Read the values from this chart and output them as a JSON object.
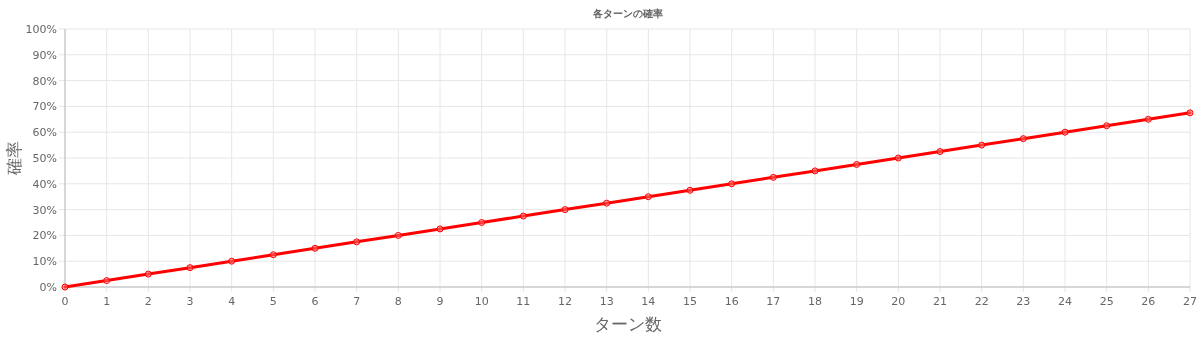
{
  "chart_data": {
    "type": "line",
    "title": "各ターンの確率",
    "xlabel": "ターン数",
    "ylabel": "確率",
    "x": [
      0,
      1,
      2,
      3,
      4,
      5,
      6,
      7,
      8,
      9,
      10,
      11,
      12,
      13,
      14,
      15,
      16,
      17,
      18,
      19,
      20,
      21,
      22,
      23,
      24,
      25,
      26,
      27
    ],
    "series": [
      {
        "color": "#ff0000",
        "values": [
          0,
          2.5,
          5,
          7.5,
          10,
          12.5,
          15,
          17.5,
          20,
          22.5,
          25,
          27.5,
          30,
          32.5,
          35,
          37.5,
          40,
          42.5,
          45,
          47.5,
          50,
          52.5,
          55,
          57.5,
          60,
          62.5,
          65,
          67.5
        ]
      }
    ],
    "xlim": [
      0,
      27
    ],
    "ylim": [
      0,
      100
    ],
    "xticks": [
      0,
      1,
      2,
      3,
      4,
      5,
      6,
      7,
      8,
      9,
      10,
      11,
      12,
      13,
      14,
      15,
      16,
      17,
      18,
      19,
      20,
      21,
      22,
      23,
      24,
      25,
      26,
      27
    ],
    "yticks": [
      {
        "value": 0,
        "label": "0%"
      },
      {
        "value": 10,
        "label": "10%"
      },
      {
        "value": 20,
        "label": "20%"
      },
      {
        "value": 30,
        "label": "30%"
      },
      {
        "value": 40,
        "label": "40%"
      },
      {
        "value": 50,
        "label": "50%"
      },
      {
        "value": 60,
        "label": "60%"
      },
      {
        "value": 70,
        "label": "70%"
      },
      {
        "value": 80,
        "label": "80%"
      },
      {
        "value": 90,
        "label": "90%"
      },
      {
        "value": 100,
        "label": "100%"
      }
    ],
    "grid": true,
    "marker": "circle"
  }
}
